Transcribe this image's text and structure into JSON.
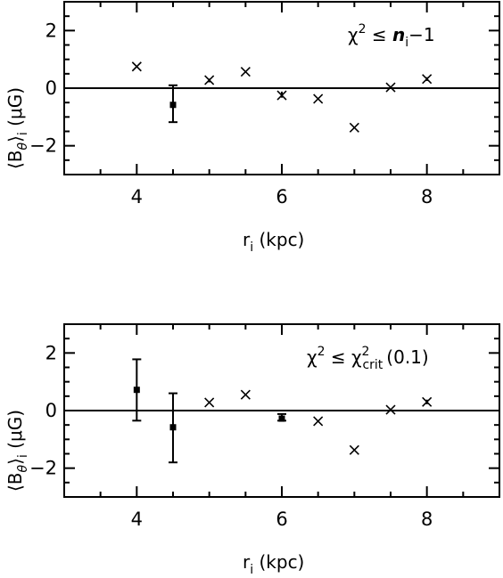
{
  "chart_data": [
    {
      "type": "scatter",
      "annotation": {
        "chi": "χ",
        "sup": "2",
        "rel": " ≤ ",
        "n": "n",
        "sub": "i",
        "rest": "−1"
      },
      "xlabel": {
        "main": "r",
        "sub": "i",
        "rest": " (kpc)"
      },
      "ylabel": {
        "open": "⟨B",
        "sub1": "θ",
        "close": "⟩",
        "sub2": "i",
        "rest": " (μG)"
      },
      "xlim": [
        3,
        9
      ],
      "ylim": [
        -3,
        3
      ],
      "xticks": [
        4,
        6,
        8
      ],
      "yticks": [
        2,
        0,
        -2
      ],
      "ytick_labels": [
        "2",
        "0",
        "−2"
      ],
      "reference_line_y": 0,
      "grid": false,
      "series": [
        {
          "marker": "cross",
          "x": [
            4,
            5,
            5.5,
            6,
            6.5,
            7,
            7.5,
            8
          ],
          "y": [
            0.75,
            0.28,
            0.57,
            -0.25,
            -0.37,
            -1.37,
            0.03,
            0.32
          ]
        },
        {
          "marker": "square",
          "x": [
            4.5
          ],
          "y": [
            -0.58
          ],
          "yerr_low": [
            -1.18
          ],
          "yerr_high": [
            0.1
          ]
        }
      ],
      "error_bars": [
        {
          "x": 5,
          "low": 0.2,
          "high": 0.33
        },
        {
          "x": 6,
          "low": -0.33,
          "high": -0.12
        },
        {
          "x": 8,
          "low": 0.25,
          "high": 0.38
        }
      ]
    },
    {
      "type": "scatter",
      "annotation": {
        "chi": "χ",
        "sup": "2",
        "rel": " ≤ ",
        "chi2": "χ",
        "sup2": "2",
        "sub": "crit",
        "rest": "(0.1)"
      },
      "xlabel": {
        "main": "r",
        "sub": "i",
        "rest": " (kpc)"
      },
      "ylabel": {
        "open": "⟨B",
        "sub1": "θ",
        "close": "⟩",
        "sub2": "i",
        "rest": " (μG)"
      },
      "xlim": [
        3,
        9
      ],
      "ylim": [
        -3,
        3
      ],
      "xticks": [
        4,
        6,
        8
      ],
      "yticks": [
        2,
        0,
        -2
      ],
      "ytick_labels": [
        "2",
        "0",
        "−2"
      ],
      "reference_line_y": 0,
      "grid": false,
      "series": [
        {
          "marker": "cross",
          "x": [
            5,
            5.5,
            6.5,
            7,
            7.5,
            8
          ],
          "y": [
            0.28,
            0.55,
            -0.37,
            -1.37,
            0.03,
            0.3
          ]
        },
        {
          "marker": "square",
          "x": [
            4,
            4.5,
            6
          ],
          "y": [
            0.72,
            -0.58,
            -0.28
          ],
          "yerr_low": [
            -0.35,
            -1.8,
            -0.35
          ],
          "yerr_high": [
            1.78,
            0.6,
            -0.12
          ]
        }
      ],
      "error_bars": [
        {
          "x": 8,
          "low": 0.22,
          "high": 0.38
        }
      ]
    }
  ]
}
